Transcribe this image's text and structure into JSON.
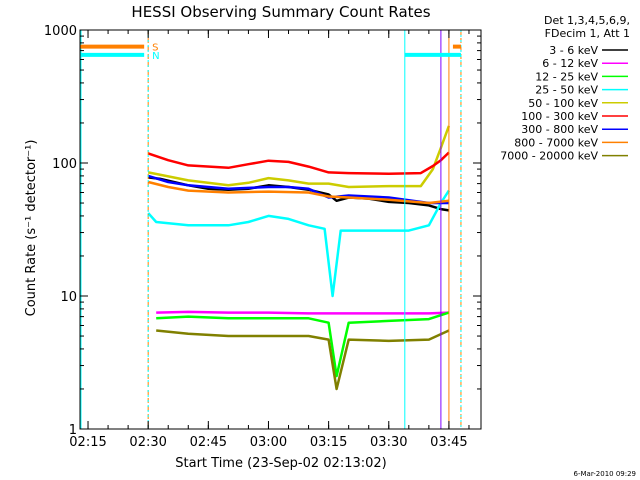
{
  "chart_data": {
    "type": "line",
    "title": "HESSI Observing Summary Count Rates",
    "xlabel": "Start Time (23-Sep-02 02:13:02)",
    "ylabel": "Count Rate (s⁻¹ detector⁻¹)",
    "yscale": "log",
    "xlim": [
      "02:13",
      "03:53"
    ],
    "ylim": [
      1,
      1000
    ],
    "x_ticks": [
      "02:15",
      "02:30",
      "02:45",
      "03:00",
      "03:15",
      "03:30",
      "03:45"
    ],
    "y_ticks": [
      "1",
      "10",
      "100",
      "1000"
    ],
    "legend_header": [
      "Det 1,3,4,5,6,9,",
      "FDecim 1, Att 1"
    ],
    "legend_position": "right",
    "footer": "6-Mar-2010 09:29",
    "annotations": [
      "S",
      "N"
    ],
    "series": [
      {
        "name": "3 - 6 keV",
        "color": "#000000",
        "x": [
          "02:30",
          "02:33",
          "02:40",
          "02:45",
          "02:50",
          "02:55",
          "03:00",
          "03:05",
          "03:10",
          "03:15",
          "03:17",
          "03:20",
          "03:25",
          "03:30",
          "03:35",
          "03:40",
          "03:43",
          "03:45"
        ],
        "y": [
          78,
          76,
          68,
          64,
          63,
          64,
          68,
          66,
          63,
          58,
          52,
          55,
          54,
          51,
          50,
          48,
          45,
          44
        ]
      },
      {
        "name": "6 - 12 keV",
        "color": "#ff00ff",
        "x": [
          "02:32",
          "02:40",
          "02:50",
          "03:00",
          "03:10",
          "03:15",
          "03:20",
          "03:30",
          "03:40",
          "03:45"
        ],
        "y": [
          7.5,
          7.6,
          7.5,
          7.5,
          7.4,
          7.4,
          7.4,
          7.4,
          7.4,
          7.5
        ]
      },
      {
        "name": "12 - 25 keV",
        "color": "#00ff00",
        "x": [
          "02:32",
          "02:40",
          "02:50",
          "03:00",
          "03:10",
          "03:15",
          "03:17",
          "03:20",
          "03:30",
          "03:40",
          "03:45"
        ],
        "y": [
          6.8,
          7.0,
          6.8,
          6.8,
          6.8,
          6.3,
          2.5,
          6.3,
          6.5,
          6.7,
          7.5
        ]
      },
      {
        "name": "25 - 50 keV",
        "color": "#00ffff",
        "x": [
          "02:30",
          "02:32",
          "02:40",
          "02:50",
          "02:55",
          "03:00",
          "03:05",
          "03:10",
          "03:14",
          "03:16",
          "03:18",
          "03:25",
          "03:35",
          "03:40",
          "03:43",
          "03:45"
        ],
        "y": [
          42,
          36,
          34,
          34,
          36,
          40,
          38,
          34,
          32,
          10,
          31,
          31,
          31,
          34,
          50,
          62
        ]
      },
      {
        "name": "50 - 100 keV",
        "color": "#cccc00",
        "x": [
          "02:30",
          "02:40",
          "02:50",
          "02:55",
          "03:00",
          "03:05",
          "03:10",
          "03:15",
          "03:20",
          "03:30",
          "03:38",
          "03:41",
          "03:43",
          "03:45"
        ],
        "y": [
          85,
          74,
          68,
          71,
          77,
          74,
          70,
          70,
          66,
          67,
          67,
          90,
          130,
          190
        ]
      },
      {
        "name": "100 - 300 keV",
        "color": "#ff0000",
        "x": [
          "02:30",
          "02:35",
          "02:40",
          "02:50",
          "02:55",
          "03:00",
          "03:05",
          "03:10",
          "03:15",
          "03:20",
          "03:30",
          "03:38",
          "03:41",
          "03:43",
          "03:45"
        ],
        "y": [
          118,
          105,
          96,
          92,
          98,
          104,
          102,
          94,
          85,
          84,
          83,
          84,
          95,
          105,
          120
        ]
      },
      {
        "name": "300 - 800 keV",
        "color": "#0000ff",
        "x": [
          "02:30",
          "02:35",
          "02:40",
          "02:45",
          "02:50",
          "02:55",
          "03:00",
          "03:05",
          "03:10",
          "03:15",
          "03:20",
          "03:30",
          "03:40",
          "03:45"
        ],
        "y": [
          80,
          72,
          68,
          66,
          64,
          65,
          66,
          66,
          64,
          55,
          57,
          55,
          50,
          50
        ]
      },
      {
        "name": "800 - 7000 keV",
        "color": "#ff8000",
        "x": [
          "02:30",
          "02:35",
          "02:40",
          "02:50",
          "03:00",
          "03:10",
          "03:15",
          "03:20",
          "03:30",
          "03:40",
          "03:45"
        ],
        "y": [
          72,
          66,
          62,
          60,
          61,
          60,
          56,
          55,
          53,
          50,
          52
        ]
      },
      {
        "name": "7000 - 20000 keV",
        "color": "#808000",
        "x": [
          "02:32",
          "02:40",
          "02:50",
          "03:00",
          "03:10",
          "03:15",
          "03:17",
          "03:20",
          "03:30",
          "03:40",
          "03:45"
        ],
        "y": [
          5.5,
          5.2,
          5.0,
          5.0,
          5.0,
          4.7,
          2.0,
          4.7,
          4.6,
          4.7,
          5.5
        ]
      }
    ],
    "flag_bars": [
      {
        "label": "S",
        "color": "#ff8000",
        "y": 750,
        "x_ranges": [
          [
            "02:13",
            "02:29"
          ],
          [
            "03:46",
            "03:48"
          ]
        ]
      },
      {
        "label": "N",
        "color": "#00ffff",
        "y": 650,
        "x_ranges": [
          [
            "02:13",
            "02:29"
          ],
          [
            "03:34",
            "03:48"
          ]
        ]
      }
    ]
  }
}
